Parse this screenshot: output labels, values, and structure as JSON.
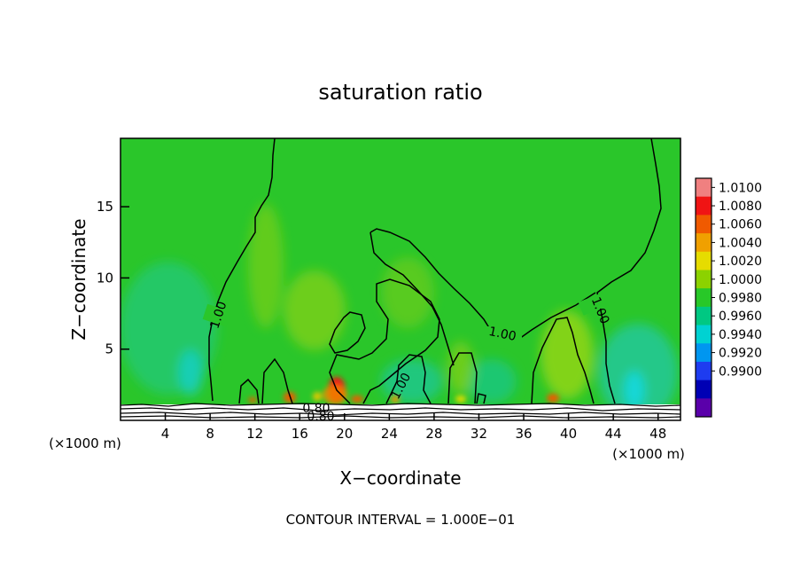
{
  "chart_data": {
    "type": "heatmap",
    "title": "saturation ratio",
    "xlabel": "X−coordinate",
    "ylabel": "Z−coordinate",
    "x_unit_left": "(×1000 m)",
    "x_unit_right": "(×1000 m)",
    "footer": "CONTOUR INTERVAL = 1.000E−01",
    "xlim": [
      0,
      50
    ],
    "ylim": [
      0,
      19.8
    ],
    "x_ticks": [
      "4",
      "8",
      "12",
      "16",
      "20",
      "24",
      "28",
      "32",
      "36",
      "40",
      "44",
      "48"
    ],
    "x_tick_values": [
      4,
      8,
      12,
      16,
      20,
      24,
      28,
      32,
      36,
      40,
      44,
      48
    ],
    "y_ticks": [
      "5",
      "10",
      "15"
    ],
    "y_tick_values": [
      5,
      10,
      15
    ],
    "colorbar": {
      "labels": [
        "1.0100",
        "1.0080",
        "1.0060",
        "1.0040",
        "1.0020",
        "1.0000",
        "0.9980",
        "0.9960",
        "0.9940",
        "0.9920",
        "0.9900"
      ],
      "colors": [
        "#f08080",
        "#f01414",
        "#f05a00",
        "#f0a000",
        "#e6dc00",
        "#8cd200",
        "#28c828",
        "#00c882",
        "#00d2d2",
        "#0096f0",
        "#1e3cf0",
        "#0000b4",
        "#5a00aa"
      ]
    },
    "contour_labels": [
      "1.00",
      "1.00",
      "1.00",
      "1.00",
      "0.80",
      "0.80"
    ],
    "contour_line_color": "#000000",
    "background_field_color": "#2ac62a"
  }
}
